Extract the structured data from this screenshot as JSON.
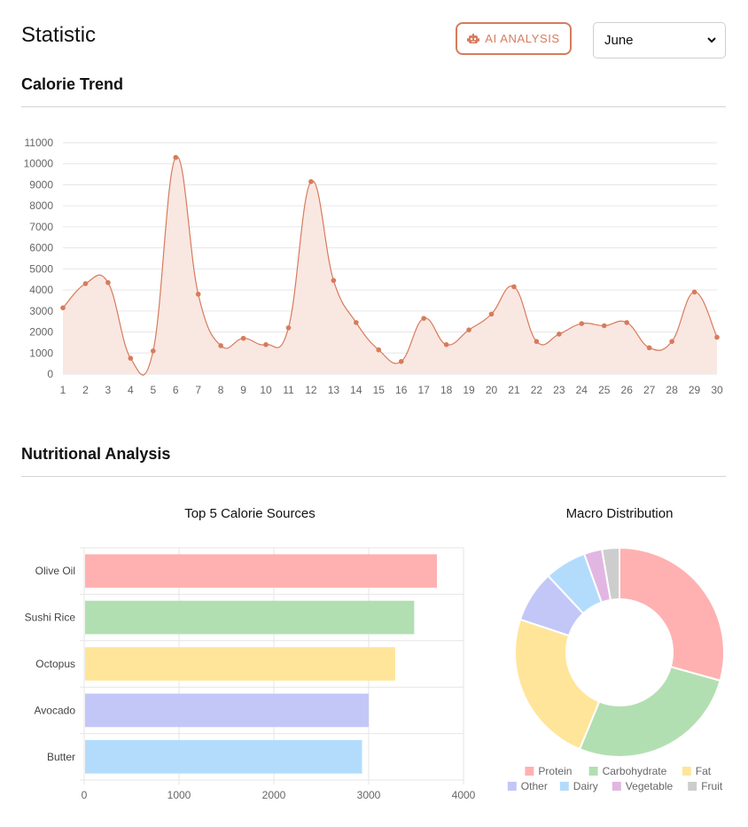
{
  "header": {
    "title": "Statistic",
    "ai_button_label": "AI ANALYSIS",
    "ai_button_icon": "robot-icon",
    "month_selected": "June",
    "accent_color": "#d77b5c"
  },
  "sections": {
    "calorie_trend_title": "Calorie Trend",
    "nutritional_analysis_title": "Nutritional Analysis"
  },
  "chart_data": [
    {
      "id": "calorie_trend",
      "type": "area",
      "title": "",
      "x": [
        "1",
        "2",
        "3",
        "4",
        "5",
        "6",
        "7",
        "8",
        "9",
        "10",
        "11",
        "12",
        "13",
        "14",
        "15",
        "16",
        "17",
        "18",
        "19",
        "20",
        "21",
        "22",
        "23",
        "24",
        "25",
        "26",
        "27",
        "28",
        "29",
        "30"
      ],
      "series": [
        {
          "values": [
            3150,
            4300,
            4350,
            750,
            1100,
            10300,
            3800,
            1350,
            1700,
            1400,
            2200,
            9150,
            4450,
            2450,
            1150,
            600,
            2650,
            1400,
            2100,
            2850,
            4150,
            1550,
            1900,
            2400,
            2300,
            2450,
            1250,
            1550,
            3900,
            1750
          ],
          "color": "#d77b5c",
          "fill": "#f9e7e2"
        }
      ],
      "ylim": [
        0,
        11000
      ],
      "yticks": [
        0,
        1000,
        2000,
        3000,
        4000,
        5000,
        6000,
        7000,
        8000,
        9000,
        10000,
        11000
      ],
      "grid": true,
      "legend": "none"
    },
    {
      "id": "top5",
      "type": "bar",
      "orientation": "horizontal",
      "title": "Top 5 Calorie Sources",
      "categories": [
        "Olive Oil",
        "Sushi Rice",
        "Octopus",
        "Avocado",
        "Butter"
      ],
      "values": [
        3720,
        3480,
        3280,
        3000,
        2930
      ],
      "colors": [
        "#ffb1b1",
        "#b2dfb2",
        "#ffe59a",
        "#c3c7f7",
        "#b3dcfc"
      ],
      "xlim": [
        0,
        4000
      ],
      "xticks": [
        0,
        1000,
        2000,
        3000,
        4000
      ],
      "grid": true,
      "legend": "none"
    },
    {
      "id": "macro",
      "type": "pie",
      "title": "Macro Distribution",
      "labels": [
        "Protein",
        "Carbohydrate",
        "Fat",
        "Other",
        "Dairy",
        "Vegetable",
        "Fruit"
      ],
      "values": [
        29.5,
        27,
        24,
        8,
        6.5,
        2.8,
        2.7
      ],
      "colors": [
        "#ffb1b1",
        "#b2dfb2",
        "#ffe59a",
        "#c3c7f7",
        "#b3dcfc",
        "#e2b6e2",
        "#cdcdcd"
      ],
      "donut": true,
      "legend": "bottom"
    }
  ]
}
